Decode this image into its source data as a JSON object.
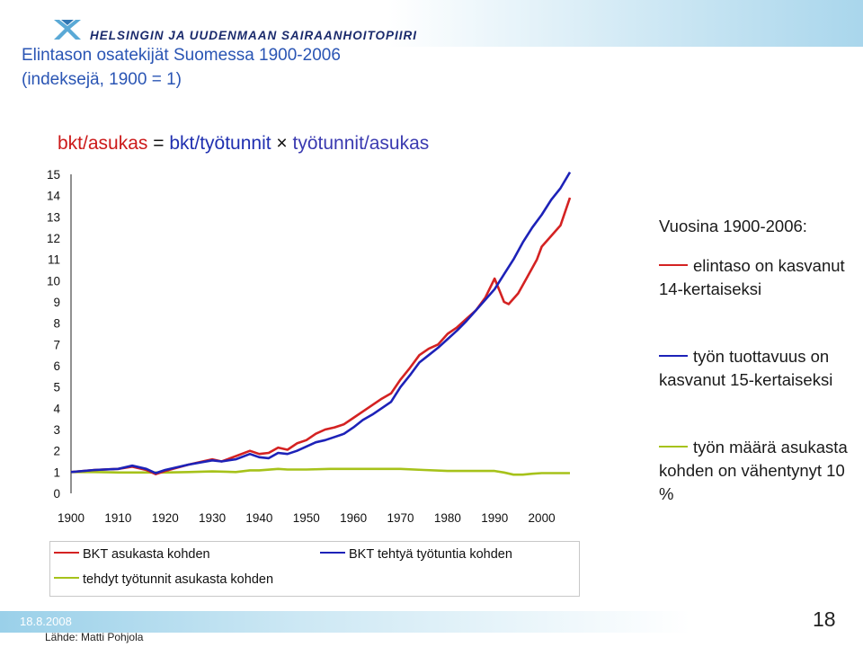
{
  "header": {
    "organization": "HELSINGIN JA UUDENMAAN SAIRAANHOITOPIIRI",
    "title_line1": "Elintason osatekijät Suomessa 1900-2006",
    "title_line2": "(indeksejä, 1900 = 1)"
  },
  "formula": {
    "term1": "bkt/asukas",
    "op1": "=",
    "term2": "bkt/työtunnit",
    "op2": "×",
    "term3": "työtunnit/asukas"
  },
  "colors": {
    "red": "#d42222",
    "blue": "#1d22b8",
    "green": "#a6c21a"
  },
  "chart_data": {
    "type": "line",
    "title": "",
    "xlabel": "",
    "ylabel": "",
    "xlim": [
      1900,
      2006
    ],
    "ylim": [
      0,
      15
    ],
    "x_ticks": [
      "1900",
      "1910",
      "1920",
      "1930",
      "1940",
      "1950",
      "1960",
      "1970",
      "1980",
      "1990",
      "2000"
    ],
    "y_ticks": [
      "0",
      "1",
      "2",
      "3",
      "4",
      "5",
      "6",
      "7",
      "8",
      "9",
      "10",
      "11",
      "12",
      "13",
      "14",
      "15"
    ],
    "grid": false,
    "series": [
      {
        "name": "BKT asukasta kohden",
        "color": "#d42222",
        "points": [
          [
            1900,
            1.0
          ],
          [
            1905,
            1.1
          ],
          [
            1910,
            1.15
          ],
          [
            1913,
            1.25
          ],
          [
            1916,
            1.1
          ],
          [
            1918,
            0.9
          ],
          [
            1920,
            1.05
          ],
          [
            1925,
            1.35
          ],
          [
            1930,
            1.6
          ],
          [
            1932,
            1.5
          ],
          [
            1935,
            1.75
          ],
          [
            1938,
            2.0
          ],
          [
            1940,
            1.85
          ],
          [
            1942,
            1.9
          ],
          [
            1944,
            2.15
          ],
          [
            1946,
            2.05
          ],
          [
            1948,
            2.35
          ],
          [
            1950,
            2.5
          ],
          [
            1952,
            2.8
          ],
          [
            1954,
            3.0
          ],
          [
            1956,
            3.1
          ],
          [
            1958,
            3.25
          ],
          [
            1960,
            3.55
          ],
          [
            1962,
            3.85
          ],
          [
            1964,
            4.15
          ],
          [
            1966,
            4.45
          ],
          [
            1968,
            4.7
          ],
          [
            1970,
            5.35
          ],
          [
            1972,
            5.9
          ],
          [
            1974,
            6.5
          ],
          [
            1976,
            6.8
          ],
          [
            1978,
            7.0
          ],
          [
            1980,
            7.5
          ],
          [
            1982,
            7.8
          ],
          [
            1984,
            8.2
          ],
          [
            1986,
            8.6
          ],
          [
            1988,
            9.2
          ],
          [
            1990,
            10.1
          ],
          [
            1991,
            9.55
          ],
          [
            1992,
            9.0
          ],
          [
            1993,
            8.9
          ],
          [
            1995,
            9.4
          ],
          [
            1997,
            10.2
          ],
          [
            1999,
            11.0
          ],
          [
            2000,
            11.6
          ],
          [
            2002,
            12.1
          ],
          [
            2004,
            12.6
          ],
          [
            2006,
            13.9
          ]
        ]
      },
      {
        "name": "BKT tehtyä työtuntia kohden",
        "color": "#1d22b8",
        "points": [
          [
            1900,
            1.0
          ],
          [
            1905,
            1.1
          ],
          [
            1910,
            1.15
          ],
          [
            1913,
            1.3
          ],
          [
            1916,
            1.15
          ],
          [
            1918,
            0.95
          ],
          [
            1920,
            1.1
          ],
          [
            1925,
            1.35
          ],
          [
            1930,
            1.55
          ],
          [
            1932,
            1.5
          ],
          [
            1935,
            1.6
          ],
          [
            1938,
            1.85
          ],
          [
            1940,
            1.7
          ],
          [
            1942,
            1.65
          ],
          [
            1944,
            1.9
          ],
          [
            1946,
            1.85
          ],
          [
            1948,
            2.0
          ],
          [
            1950,
            2.2
          ],
          [
            1952,
            2.4
          ],
          [
            1954,
            2.5
          ],
          [
            1956,
            2.65
          ],
          [
            1958,
            2.8
          ],
          [
            1960,
            3.1
          ],
          [
            1962,
            3.45
          ],
          [
            1964,
            3.7
          ],
          [
            1966,
            4.0
          ],
          [
            1968,
            4.3
          ],
          [
            1970,
            5.0
          ],
          [
            1972,
            5.55
          ],
          [
            1974,
            6.15
          ],
          [
            1976,
            6.5
          ],
          [
            1978,
            6.85
          ],
          [
            1980,
            7.25
          ],
          [
            1982,
            7.65
          ],
          [
            1984,
            8.1
          ],
          [
            1986,
            8.6
          ],
          [
            1988,
            9.1
          ],
          [
            1990,
            9.6
          ],
          [
            1992,
            10.3
          ],
          [
            1994,
            11.0
          ],
          [
            1996,
            11.8
          ],
          [
            1998,
            12.5
          ],
          [
            2000,
            13.1
          ],
          [
            2002,
            13.8
          ],
          [
            2004,
            14.35
          ],
          [
            2006,
            15.1
          ]
        ]
      },
      {
        "name": "tehdyt työtunnit asukasta kohden",
        "color": "#a6c21a",
        "points": [
          [
            1900,
            1.0
          ],
          [
            1905,
            1.0
          ],
          [
            1910,
            0.98
          ],
          [
            1915,
            0.98
          ],
          [
            1920,
            0.98
          ],
          [
            1925,
            1.0
          ],
          [
            1930,
            1.03
          ],
          [
            1935,
            1.0
          ],
          [
            1938,
            1.08
          ],
          [
            1940,
            1.08
          ],
          [
            1944,
            1.15
          ],
          [
            1946,
            1.12
          ],
          [
            1950,
            1.12
          ],
          [
            1955,
            1.15
          ],
          [
            1960,
            1.15
          ],
          [
            1965,
            1.15
          ],
          [
            1970,
            1.15
          ],
          [
            1975,
            1.1
          ],
          [
            1980,
            1.05
          ],
          [
            1985,
            1.05
          ],
          [
            1990,
            1.05
          ],
          [
            1992,
            0.98
          ],
          [
            1994,
            0.88
          ],
          [
            1996,
            0.88
          ],
          [
            1998,
            0.92
          ],
          [
            2000,
            0.95
          ],
          [
            2003,
            0.95
          ],
          [
            2006,
            0.95
          ]
        ]
      }
    ],
    "legend_position": "bottom"
  },
  "side_text": {
    "heading": "Vuosina 1900-2006:",
    "items": [
      {
        "text": "elintaso on kasvanut 14-kertaiseksi",
        "color": "#d42222"
      },
      {
        "text": "työn tuottavuus on kasvanut 15-kertaiseksi",
        "color": "#1d22b8"
      },
      {
        "text": "työn määrä asukasta kohden on vähentynyt 10 %",
        "color": "#a6c21a"
      }
    ]
  },
  "footer": {
    "date": "18.8.2008",
    "source": "Lähde: Matti Pohjola",
    "page": "18"
  }
}
